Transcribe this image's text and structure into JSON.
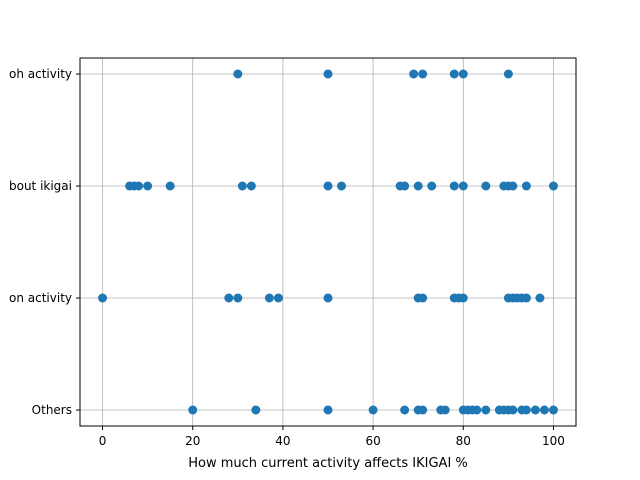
{
  "chart_data": {
    "type": "scatter",
    "title": "",
    "xlabel": "How much current activity affects IKIGAI %",
    "ylabel": "",
    "xlim": [
      -5,
      105
    ],
    "x_ticks": [
      0,
      20,
      40,
      60,
      80,
      100
    ],
    "categories": [
      "Others",
      "on activity",
      "bout ikigai",
      "oh activity"
    ],
    "grid": true,
    "marker_color": "#1f77b4",
    "series": [
      {
        "category": "oh activity",
        "x": [
          30,
          50,
          69,
          71,
          78,
          80,
          90
        ]
      },
      {
        "category": "bout ikigai",
        "x": [
          6,
          7,
          8,
          10,
          15,
          31,
          33,
          50,
          53,
          66,
          67,
          70,
          73,
          78,
          80,
          85,
          89,
          90,
          91,
          94,
          100
        ]
      },
      {
        "category": "on activity",
        "x": [
          0,
          28,
          30,
          37,
          39,
          50,
          70,
          71,
          78,
          79,
          80,
          90,
          91,
          92,
          93,
          94,
          97
        ]
      },
      {
        "category": "Others",
        "x": [
          20,
          34,
          50,
          60,
          67,
          70,
          71,
          75,
          76,
          80,
          81,
          82,
          83,
          85,
          88,
          89,
          90,
          91,
          93,
          94,
          96,
          98,
          100
        ]
      }
    ]
  }
}
